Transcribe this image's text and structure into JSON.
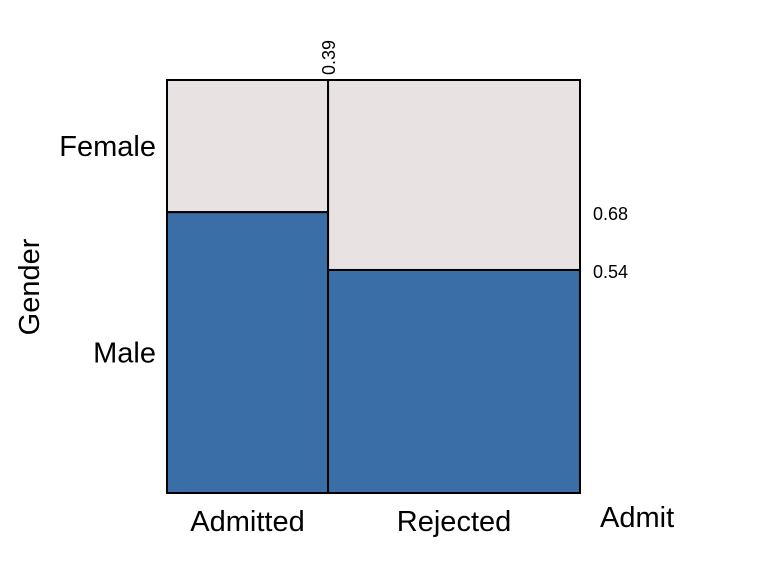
{
  "chart_data": {
    "type": "mosaic",
    "x_variable": "Admit",
    "y_variable": "Gender",
    "x_categories": [
      "Admitted",
      "Rejected"
    ],
    "y_categories": [
      "Female",
      "Male"
    ],
    "column_split": 0.39,
    "male_proportion": [
      0.68,
      0.54
    ],
    "split_labels": {
      "column": "0.39",
      "admitted": "0.68",
      "rejected": "0.54"
    },
    "colors": {
      "Female": "#e8e2e2",
      "Male": "#3a6ea6",
      "border": "#000000"
    },
    "xlabel": "Admit",
    "ylabel": "Gender"
  }
}
